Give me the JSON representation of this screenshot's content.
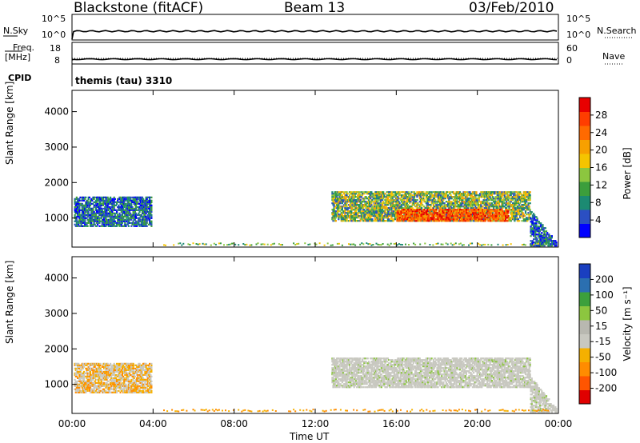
{
  "header": {
    "station": "Blackstone (fitACF)",
    "beam": "Beam 13",
    "date": "03/Feb/2010"
  },
  "panels": {
    "nsky": {
      "label": "N.Sky",
      "ticks": [
        "10^5",
        "10^0"
      ],
      "right_label": "N.Search",
      "right_ticks": [
        "10^5",
        "10^0"
      ]
    },
    "freq": {
      "label_line1": "Freq.",
      "label_line2": "[MHz]",
      "ticks": [
        "18",
        "8"
      ],
      "right_label": "Nave",
      "right_ticks": [
        "60",
        "0"
      ]
    },
    "cpid": {
      "label": "CPID",
      "value": "themis (tau) 3310"
    }
  },
  "chart_data": [
    {
      "type": "heatmap",
      "title": "",
      "xlabel": "Time UT",
      "ylabel": "Slant Range [km]",
      "x_ticks": [
        "00:00",
        "04:00",
        "08:00",
        "12:00",
        "16:00",
        "20:00",
        "00:00"
      ],
      "xlim_hours": [
        0,
        24
      ],
      "ylim": [
        180,
        4600
      ],
      "y_ticks": [
        1000,
        2000,
        3000,
        4000
      ],
      "colorbar": {
        "label": "Power [dB]",
        "ticks": [
          "28",
          "24",
          "20",
          "16",
          "12",
          "8",
          "4"
        ],
        "colors": [
          "#0000ff",
          "#2b4fc2",
          "#1c8a72",
          "#3c9e3c",
          "#8cc63f",
          "#f5c400",
          "#f7a000",
          "#ff6a00",
          "#ff3d00",
          "#e80000"
        ]
      },
      "echo_regions": [
        {
          "t_start": 0.1,
          "t_end": 3.9,
          "range_min": 750,
          "range_max": 1600,
          "level": "8-16 dB"
        },
        {
          "t_start": 12.8,
          "t_end": 22.6,
          "range_min": 900,
          "range_max": 1750,
          "level": "8-28 dB"
        },
        {
          "t_start": 16.0,
          "t_end": 21.5,
          "range_min": 900,
          "range_max": 1250,
          "level": "20-28 dB"
        },
        {
          "t_start": 22.6,
          "t_end": 23.9,
          "range_min": 200,
          "range_max": 1200,
          "level": "4-24 dB"
        }
      ]
    },
    {
      "type": "heatmap",
      "title": "",
      "xlabel": "Time UT",
      "ylabel": "Slant Range [km]",
      "x_ticks": [
        "00:00",
        "04:00",
        "08:00",
        "12:00",
        "16:00",
        "20:00",
        "00:00"
      ],
      "xlim_hours": [
        0,
        24
      ],
      "ylim": [
        180,
        4600
      ],
      "y_ticks": [
        1000,
        2000,
        3000,
        4000
      ],
      "colorbar": {
        "label": "Velocity [m s⁻¹]",
        "ticks": [
          "200",
          "100",
          "50",
          "15",
          "-15",
          "-50",
          "-100",
          "-200"
        ],
        "colors": [
          "#e00000",
          "#ff5500",
          "#ff8c00",
          "#f5b000",
          "#c8c8c0",
          "#b8b8b0",
          "#8cc63f",
          "#3ca03c",
          "#2b6fb0",
          "#1a3fc0"
        ]
      },
      "echo_regions": [
        {
          "t_start": 0.1,
          "t_end": 3.9,
          "range_min": 750,
          "range_max": 1600,
          "level": "-50 to 15 m/s"
        },
        {
          "t_start": 12.8,
          "t_end": 22.6,
          "range_min": 900,
          "range_max": 1750,
          "level": "-15 to 15 m/s"
        },
        {
          "t_start": 22.6,
          "t_end": 23.9,
          "range_min": 200,
          "range_max": 1200,
          "level": "15 to 50 m/s"
        }
      ]
    }
  ]
}
